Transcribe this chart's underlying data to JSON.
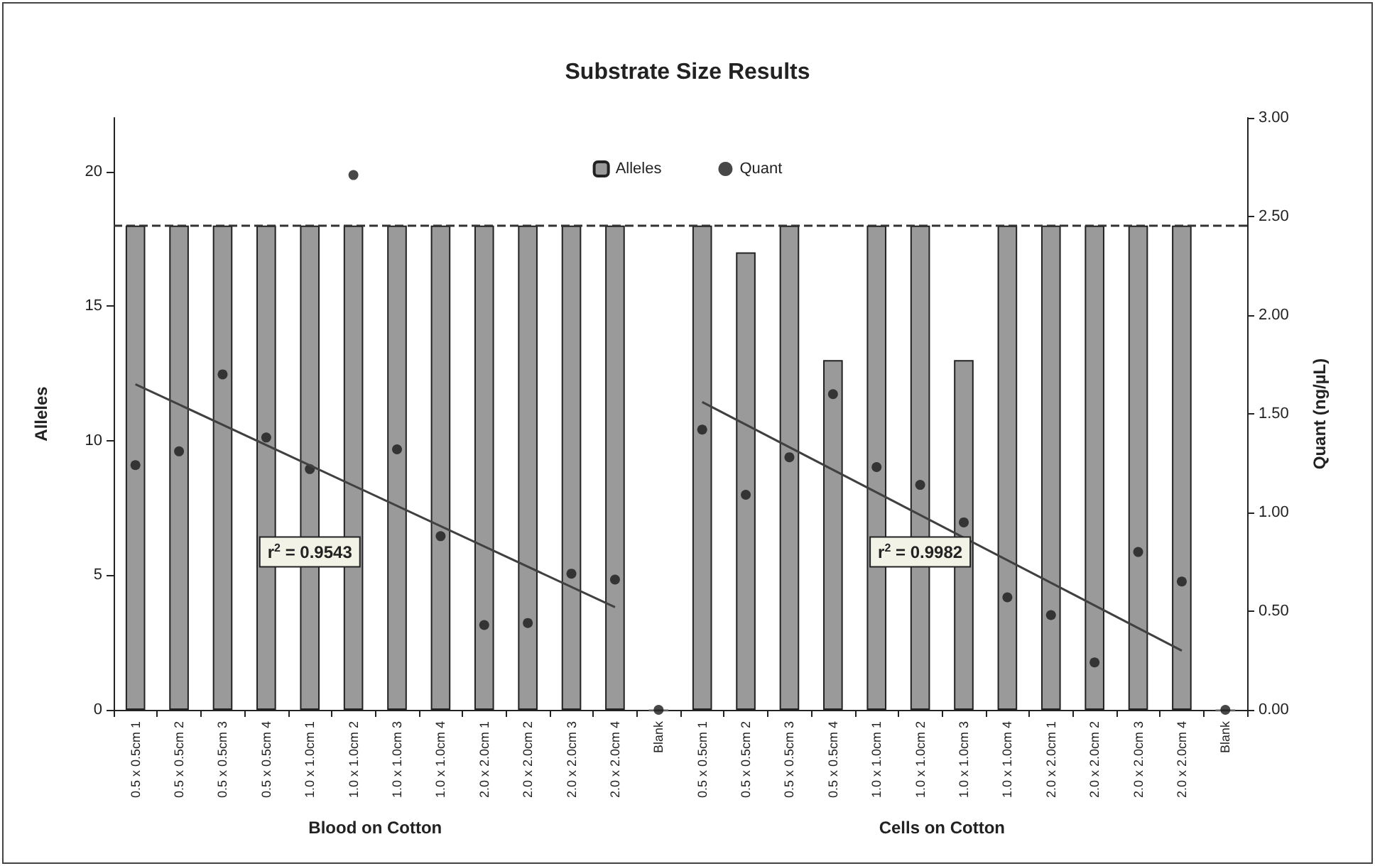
{
  "chart_data": {
    "type": "bar",
    "title": "Substrate Size Results",
    "ylabel": "Alleles",
    "y2label": "Quant (ng/µL)",
    "categories": [
      "0.5 x 0.5cm 1",
      "0.5 x 0.5cm 2",
      "0.5 x 0.5cm 3",
      "0.5 x 0.5cm 4",
      "1.0 x 1.0cm 1",
      "1.0 x 1.0cm 2",
      "1.0 x 1.0cm 3",
      "1.0 x 1.0cm 4",
      "2.0 x 2.0cm 1",
      "2.0 x 2.0cm 2",
      "2.0 x 2.0cm 3",
      "2.0 x 2.0cm 4",
      "Blank",
      "0.5 x 0.5cm 1",
      "0.5 x 0.5cm 2",
      "0.5 x 0.5cm 3",
      "0.5 x 0.5cm 4",
      "1.0 x 1.0cm 1",
      "1.0 x 1.0cm 2",
      "1.0 x 1.0cm 3",
      "1.0 x 1.0cm 4",
      "2.0 x 2.0cm 1",
      "2.0 x 2.0cm 2",
      "2.0 x 2.0cm 3",
      "2.0 x 2.0cm 4",
      "Blank"
    ],
    "series": [
      {
        "name": "Alleles",
        "color": "#9a9a9a",
        "values": [
          18,
          18,
          18,
          18,
          18,
          18,
          18,
          18,
          18,
          18,
          18,
          18,
          0,
          18,
          17,
          18,
          13,
          18,
          18,
          13,
          18,
          18,
          18,
          18,
          18,
          0
        ]
      },
      {
        "name": "Quant",
        "type": "scatter",
        "axis": "y2",
        "color": "#1a1a1a",
        "marker": "circle",
        "values": [
          1.24,
          1.31,
          1.7,
          1.38,
          1.22,
          2.71,
          1.32,
          0.88,
          0.43,
          0.44,
          0.69,
          0.66,
          0,
          1.42,
          1.09,
          1.28,
          1.6,
          1.23,
          1.14,
          0.95,
          0.57,
          0.48,
          0.24,
          0.8,
          0.65,
          0
        ]
      },
      {
        "type": "line",
        "axis": "y2",
        "color": "#404040",
        "marker": "none",
        "values": [
          1.65,
          null,
          null,
          null,
          null,
          null,
          null,
          null,
          null,
          null,
          null,
          0.52,
          null,
          null,
          null,
          null,
          null,
          null,
          null,
          null,
          null,
          null,
          null,
          null,
          null,
          null
        ]
      },
      {
        "type": "line",
        "axis": "y2",
        "color": "#404040",
        "marker": "none",
        "values": [
          null,
          null,
          null,
          null,
          null,
          null,
          null,
          null,
          null,
          null,
          null,
          null,
          null,
          1.56,
          null,
          null,
          null,
          null,
          null,
          null,
          null,
          null,
          null,
          null,
          0.3,
          null
        ]
      }
    ],
    "ylim": [
      0,
      22
    ],
    "yticks": [
      0,
      5,
      10,
      15,
      20
    ],
    "y2lim": [
      0,
      3
    ],
    "y2ticks": [
      {
        "value": 0,
        "label": "0.00"
      },
      {
        "value": 0.5,
        "label": "0.50"
      },
      {
        "value": 1,
        "label": "1.00"
      },
      {
        "value": 1.5,
        "label": "1.50"
      },
      {
        "value": 2,
        "label": "2.00"
      },
      {
        "value": 2.5,
        "label": "2.50"
      },
      {
        "value": 3,
        "label": "3.00"
      }
    ],
    "ref_lines": [
      {
        "axis": "y",
        "value": 18,
        "color": "#333333",
        "line_style": "dashed"
      }
    ],
    "annotations": [
      "r$^{2}$ = 0.9543",
      "r$^{2}$ = 0.9982",
      "Blood on Cotton",
      "Cells on Cotton"
    ],
    "legend": "top",
    "grid": false
  }
}
